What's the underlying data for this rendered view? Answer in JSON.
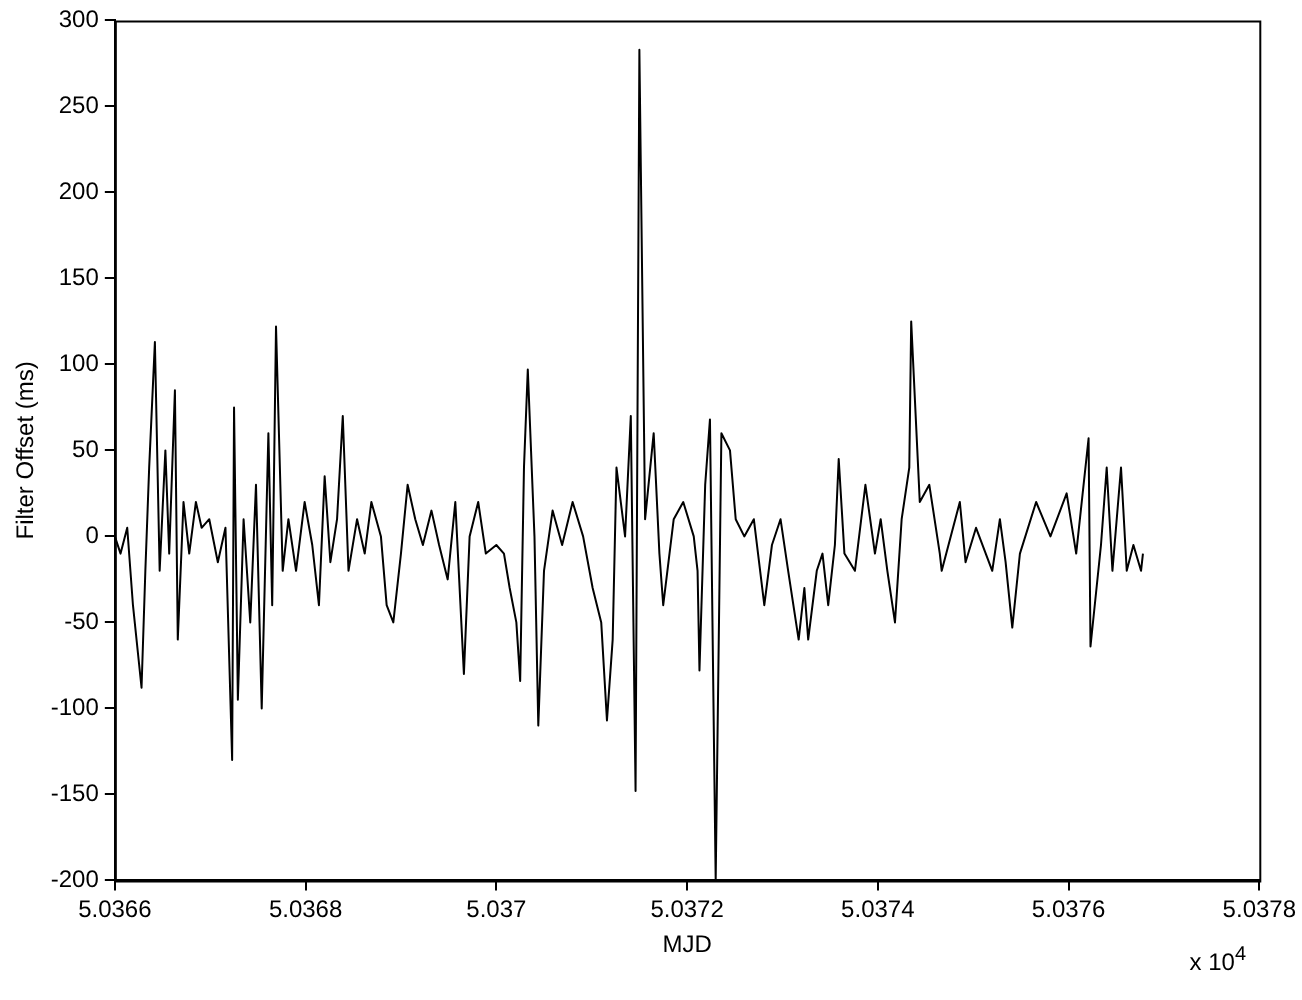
{
  "chart_data": {
    "type": "line",
    "xlabel": "MJD",
    "ylabel": "Filter Offset (ms)",
    "annotations": [
      "x 10$^{4}$"
    ],
    "x": [
      5.0366,
      5.036606,
      5.036613,
      5.036619,
      5.036628,
      5.036632,
      5.036636,
      5.036642,
      5.036647,
      5.036653,
      5.036657,
      5.036663,
      5.036666,
      5.036672,
      5.036678,
      5.036685,
      5.036691,
      5.036699,
      5.036708,
      5.036716,
      5.036723,
      5.036725,
      5.036729,
      5.036735,
      5.036742,
      5.036748,
      5.036754,
      5.036761,
      5.036765,
      5.036769,
      5.036776,
      5.036782,
      5.03679,
      5.036799,
      5.036807,
      5.036814,
      5.03682,
      5.036826,
      5.036833,
      5.036839,
      5.036845,
      5.036854,
      5.036862,
      5.036869,
      5.036879,
      5.036885,
      5.036892,
      5.0369,
      5.036907,
      5.036915,
      5.036923,
      5.036932,
      5.03694,
      5.036949,
      5.036957,
      5.036966,
      5.036972,
      5.036981,
      5.036989,
      5.037,
      5.037008,
      5.037014,
      5.037021,
      5.037025,
      5.037029,
      5.037033,
      5.03704,
      5.037044,
      5.03705,
      5.037059,
      5.037069,
      5.03708,
      5.037091,
      5.037101,
      5.03711,
      5.037116,
      5.037122,
      5.037126,
      5.037135,
      5.037141,
      5.037146,
      5.03715,
      5.037156,
      5.037165,
      5.037171,
      5.037175,
      5.037186,
      5.037196,
      5.037207,
      5.037211,
      5.037213,
      5.037219,
      5.037224,
      5.03723,
      5.037236,
      5.037245,
      5.037251,
      5.03726,
      5.03727,
      5.037281,
      5.037289,
      5.037298,
      5.037306,
      5.037317,
      5.037323,
      5.037327,
      5.037336,
      5.037342,
      5.037348,
      5.037355,
      5.037359,
      5.037365,
      5.037376,
      5.037387,
      5.037397,
      5.037403,
      5.03741,
      5.037418,
      5.037425,
      5.037433,
      5.037435,
      5.037444,
      5.037454,
      5.037465,
      5.037467,
      5.037486,
      5.037492,
      5.037503,
      5.03752,
      5.037528,
      5.037534,
      5.037541,
      5.037549,
      5.037566,
      5.037581,
      5.037598,
      5.037608,
      5.037621,
      5.037623,
      5.037634,
      5.03764,
      5.037646,
      5.037655,
      5.037661,
      5.037668,
      5.037676,
      5.037678
    ],
    "series": [
      {
        "color": "#000000",
        "values": [
          0,
          -10,
          5,
          -40,
          -88,
          -20,
          40,
          113,
          -20,
          50,
          -10,
          85,
          -60,
          20,
          -10,
          20,
          5,
          10,
          -15,
          5,
          -130,
          75,
          -95,
          10,
          -50,
          30,
          -100,
          60,
          -40,
          122,
          -20,
          10,
          -20,
          20,
          -5,
          -40,
          35,
          -15,
          10,
          70,
          -20,
          10,
          -10,
          20,
          0,
          -40,
          -50,
          -10,
          30,
          10,
          -5,
          15,
          -5,
          -25,
          20,
          -80,
          0,
          20,
          -10,
          -5,
          -10,
          -30,
          -50,
          -84,
          40,
          97,
          0,
          -110,
          -20,
          15,
          -5,
          20,
          0,
          -30,
          -50,
          -107,
          -60,
          40,
          0,
          70,
          -148,
          283,
          10,
          60,
          -10,
          -40,
          10,
          20,
          0,
          -20,
          -78,
          30,
          68,
          -200,
          60,
          50,
          10,
          0,
          10,
          -40,
          -5,
          10,
          -20,
          -60,
          -30,
          -60,
          -20,
          -10,
          -40,
          -5,
          45,
          -10,
          -20,
          30,
          -10,
          10,
          -20,
          -50,
          10,
          40,
          125,
          20,
          30,
          -10,
          -20,
          20,
          -15,
          5,
          -20,
          10,
          -15,
          -53,
          -10,
          20,
          0,
          25,
          -10,
          57,
          -64,
          -5,
          40,
          -20,
          40,
          -20,
          -5,
          -20,
          -10
        ]
      }
    ],
    "xlim": [
      5.0366,
      5.0378
    ],
    "xticks": [
      5.0366,
      5.0368,
      5.037,
      5.0372,
      5.0374,
      5.0376,
      5.0378
    ],
    "ylim": [
      -200,
      300
    ],
    "yticks": [
      -200,
      -150,
      -100,
      -50,
      0,
      50,
      100,
      150,
      200,
      250,
      300
    ],
    "grid": false,
    "legend": false,
    "marker": "none",
    "line_style": "solid"
  }
}
